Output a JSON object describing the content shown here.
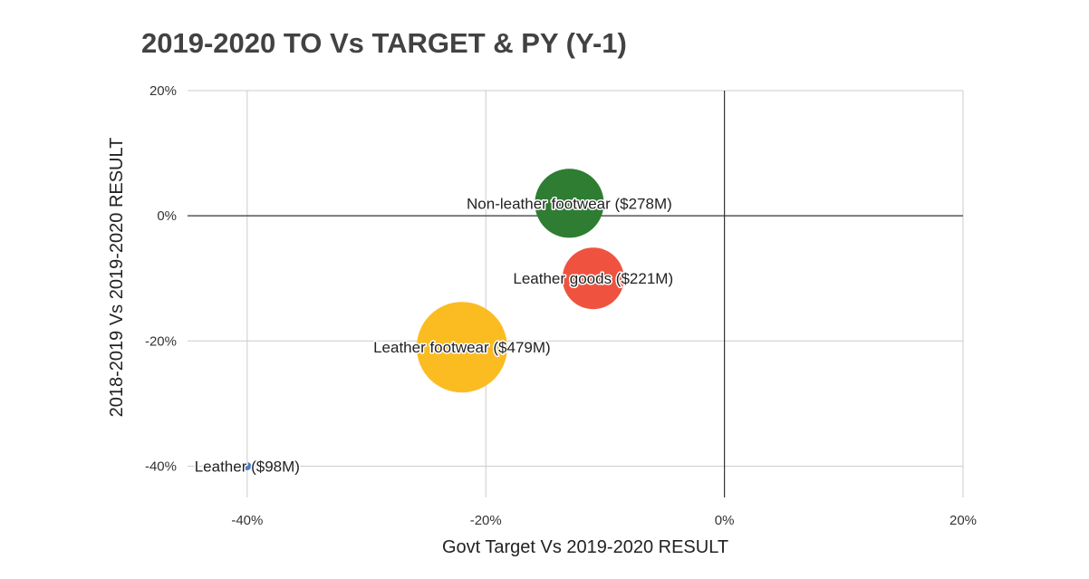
{
  "chart_data": {
    "type": "bubble",
    "title": "2019-2020 TO Vs TARGET & PY (Y-1)",
    "xlabel": "Govt Target Vs 2019-2020 RESULT",
    "ylabel": "2018-2019 Vs 2019-2020 RESULT",
    "xlim": [
      -45,
      20
    ],
    "ylim": [
      -45,
      20
    ],
    "x_ticks": [
      -40,
      -20,
      0,
      20
    ],
    "y_ticks": [
      20,
      0,
      -20,
      -40
    ],
    "x_tick_labels": [
      "-40%",
      "-20%",
      "0%",
      "20%"
    ],
    "y_tick_labels": [
      "20%",
      "0%",
      "-20%",
      "-40%"
    ],
    "grid": true,
    "legend": "none",
    "points": [
      {
        "label": "Non-leather footwear ($278M)",
        "x": -13,
        "y": 2,
        "size": 278,
        "color": "#2e7d32"
      },
      {
        "label": "Leather goods ($221M)",
        "x": -11,
        "y": -10,
        "size": 221,
        "color": "#ef5340"
      },
      {
        "label": "Leather footwear ($479M)",
        "x": -22,
        "y": -21,
        "size": 479,
        "color": "#fbbc22"
      },
      {
        "label": "Leather ($98M)",
        "x": -40,
        "y": -40,
        "size": 98,
        "color": "#4a7cc6"
      }
    ]
  }
}
